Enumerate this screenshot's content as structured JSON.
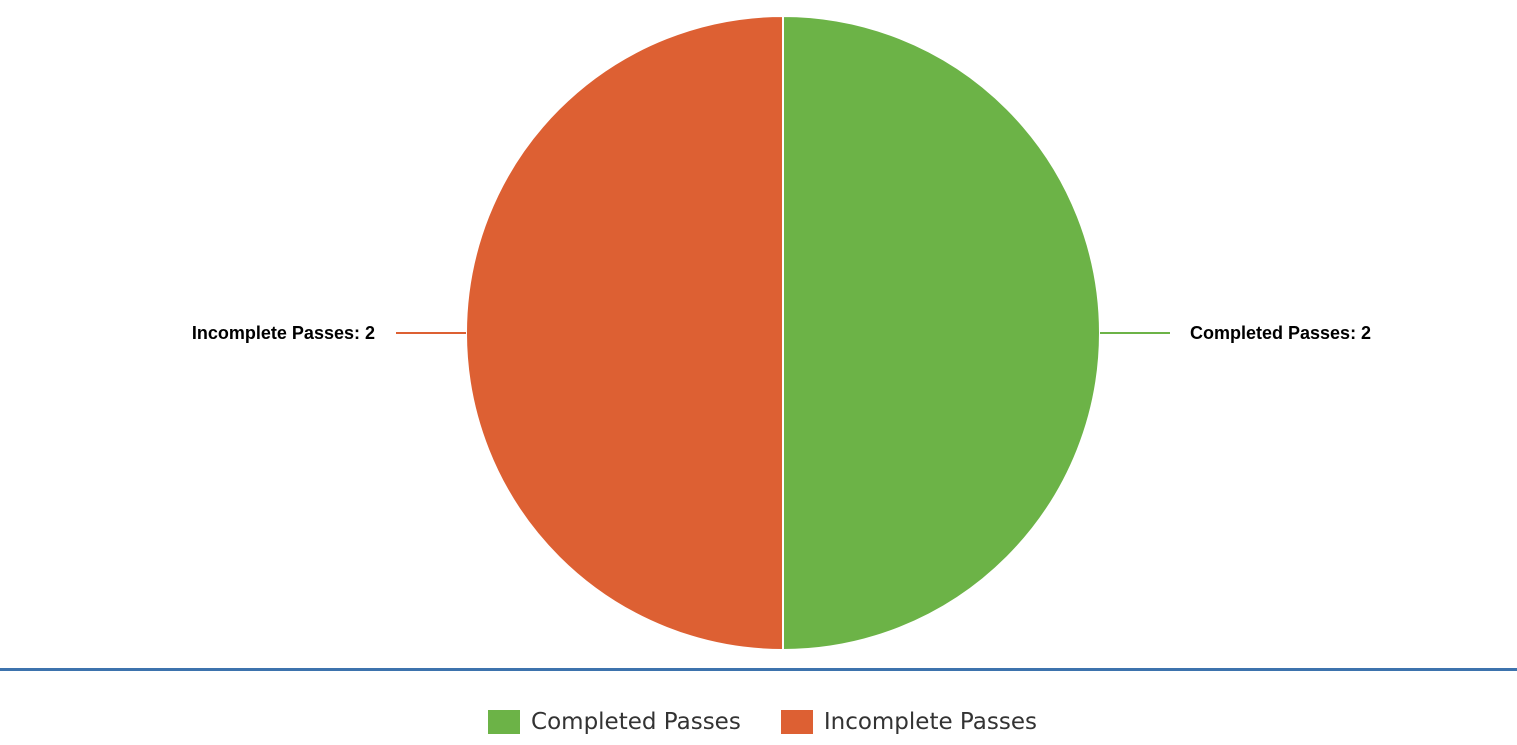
{
  "chart_data": {
    "type": "pie",
    "title": "",
    "series": [
      {
        "name": "Completed Passes",
        "value": 2,
        "color": "#6cb347",
        "data_label": "Completed Passes: 2"
      },
      {
        "name": "Incomplete Passes",
        "value": 2,
        "color": "#dd6033",
        "data_label": "Incomplete Passes: 2"
      }
    ],
    "legend_position": "bottom"
  },
  "colors": {
    "divider": "#3d73ad",
    "slice_border": "#ffffff"
  }
}
